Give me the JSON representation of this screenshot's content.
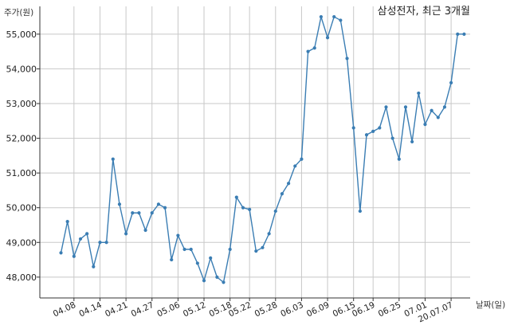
{
  "chart_data": {
    "type": "line",
    "title": "삼성전자, 최근 3개월",
    "ylabel": "주가(원)",
    "xlabel": "날짜(일)",
    "ylim": [
      47400,
      55800
    ],
    "yticks": [
      48000,
      49000,
      50000,
      51000,
      52000,
      53000,
      54000,
      55000
    ],
    "ytick_labels": [
      "48,000",
      "49,000",
      "50,000",
      "51,000",
      "52,000",
      "53,000",
      "54,000",
      "55,000"
    ],
    "xtick_labels": [
      "04.08",
      "04.14",
      "04.21",
      "04.27",
      "05.06",
      "05.12",
      "05.18",
      "05.22",
      "05.28",
      "06.03",
      "06.09",
      "06.15",
      "06.19",
      "06.25",
      "07.01",
      "20.07.07"
    ],
    "xtick_index": [
      2,
      6,
      10,
      14,
      18,
      22,
      26,
      29,
      33,
      37,
      41,
      45,
      48,
      52,
      56,
      60
    ],
    "grid": true,
    "color": "#3a7db3",
    "series": [
      {
        "name": "",
        "values": [
          48700,
          49600,
          48600,
          49100,
          49250,
          48300,
          49000,
          49000,
          51400,
          50100,
          49250,
          49850,
          49850,
          49350,
          49850,
          50100,
          50000,
          48500,
          49200,
          48800,
          48800,
          48400,
          47900,
          48550,
          48000,
          47850,
          48800,
          50300,
          50000,
          49950,
          48750,
          48850,
          49250,
          49900,
          50400,
          50700,
          51200,
          51400,
          54500,
          54600,
          55500,
          54900,
          55500,
          55400,
          54300,
          52300,
          49900,
          52100,
          52200,
          52300,
          52900,
          52000,
          51400,
          52900,
          51900,
          53300,
          52400,
          52800,
          52600,
          52900,
          53600,
          55000,
          55000
        ]
      }
    ]
  }
}
